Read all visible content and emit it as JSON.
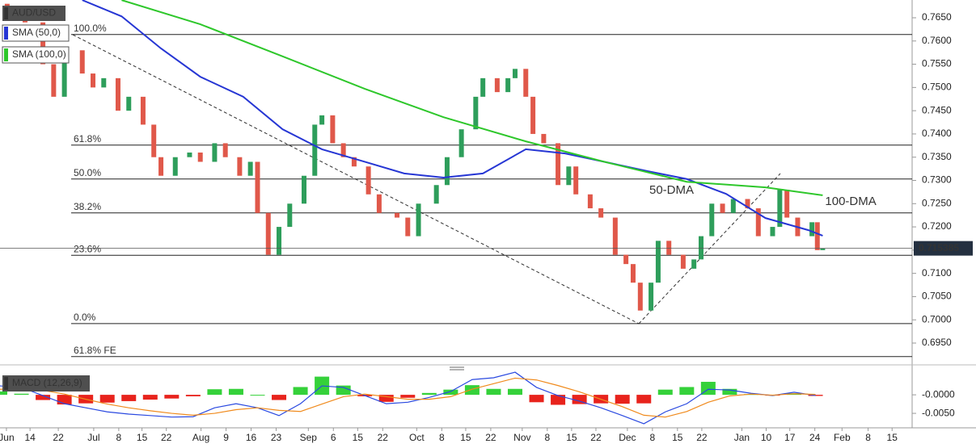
{
  "chart_data": [
    {
      "type": "candlestick",
      "name": "AUD/USD",
      "up_color": "#2e9e5b",
      "down_color": "#e0584a",
      "x": [
        2,
        7,
        12,
        15,
        18,
        23,
        26,
        29,
        33,
        36,
        40,
        43,
        45,
        49,
        53,
        56,
        60,
        63,
        67,
        70,
        72,
        75,
        78,
        81,
        85,
        88,
        90,
        93,
        96,
        99,
        103,
        106,
        111,
        114,
        117,
        122,
        125,
        129,
        133,
        135,
        139,
        142,
        144,
        147,
        149,
        152,
        156,
        159,
        161,
        165,
        168,
        172,
        175,
        177,
        179,
        182,
        184,
        187,
        191,
        194,
        196,
        199,
        202,
        205,
        209,
        212,
        216,
        218,
        220,
        223,
        227,
        228.5,
        230
      ],
      "open": [
        0.768,
        0.766,
        0.764,
        0.755,
        0.748,
        0.758,
        0.753,
        0.75,
        0.752,
        0.745,
        0.748,
        0.742,
        0.735,
        0.731,
        0.735,
        0.736,
        0.734,
        0.738,
        0.735,
        0.731,
        0.734,
        0.723,
        0.714,
        0.72,
        0.725,
        0.731,
        0.742,
        0.744,
        0.738,
        0.735,
        0.733,
        0.727,
        0.723,
        0.722,
        0.718,
        0.725,
        0.729,
        0.735,
        0.741,
        0.748,
        0.752,
        0.749,
        0.752,
        0.754,
        0.748,
        0.74,
        0.738,
        0.729,
        0.733,
        0.727,
        0.724,
        0.722,
        0.714,
        0.712,
        0.708,
        0.702,
        0.708,
        0.717,
        0.714,
        0.711,
        0.713,
        0.718,
        0.725,
        0.723,
        0.726,
        0.724,
        0.718,
        0.72,
        0.728,
        0.722,
        0.718,
        0.721,
        0.715
      ],
      "close": [
        0.766,
        0.764,
        0.755,
        0.748,
        0.758,
        0.753,
        0.75,
        0.752,
        0.745,
        0.748,
        0.742,
        0.735,
        0.731,
        0.735,
        0.736,
        0.734,
        0.738,
        0.735,
        0.731,
        0.734,
        0.723,
        0.714,
        0.72,
        0.725,
        0.731,
        0.742,
        0.744,
        0.738,
        0.735,
        0.733,
        0.727,
        0.723,
        0.722,
        0.718,
        0.725,
        0.729,
        0.735,
        0.741,
        0.748,
        0.752,
        0.749,
        0.752,
        0.754,
        0.748,
        0.74,
        0.738,
        0.729,
        0.733,
        0.727,
        0.724,
        0.722,
        0.714,
        0.712,
        0.708,
        0.702,
        0.708,
        0.717,
        0.714,
        0.711,
        0.713,
        0.718,
        0.725,
        0.723,
        0.726,
        0.724,
        0.718,
        0.72,
        0.728,
        0.722,
        0.718,
        0.721,
        0.715,
        0.7154
      ],
      "series": [
        {
          "name": "SMA (50,0)",
          "label": "50-DMA",
          "color": "#2636d4",
          "x": [
            23,
            34,
            45,
            56,
            68,
            79,
            90,
            102,
            113,
            124,
            135,
            147,
            158,
            169,
            181,
            192,
            203,
            214,
            226,
            230
          ],
          "values": [
            0.7688,
            0.7653,
            0.7584,
            0.7523,
            0.748,
            0.741,
            0.7367,
            0.734,
            0.7315,
            0.7306,
            0.7315,
            0.7367,
            0.7358,
            0.734,
            0.732,
            0.7303,
            0.7271,
            0.7219,
            0.7193,
            0.7181
          ]
        },
        {
          "name": "SMA (100,0)",
          "label": "100-DMA",
          "color": "#2ec72b",
          "x": [
            34,
            56,
            79,
            102,
            124,
            147,
            169,
            192,
            214,
            230
          ],
          "values": [
            0.7688,
            0.7636,
            0.7567,
            0.7497,
            0.7436,
            0.7384,
            0.734,
            0.7297,
            0.7285,
            0.7268
          ]
        }
      ],
      "fib_levels": [
        {
          "value": 0.7614,
          "label": "100.0%"
        },
        {
          "value": 0.7376,
          "label": "61.8%"
        },
        {
          "value": 0.7303,
          "label": "50.0%"
        },
        {
          "value": 0.723,
          "label": "38.2%"
        },
        {
          "value": 0.7139,
          "label": "23.6%"
        },
        {
          "value": 0.6992,
          "label": "0.0%"
        },
        {
          "value": 0.6921,
          "label": "61.8% FE"
        }
      ],
      "last_price": 0.715385,
      "xlim": [
        0,
        255
      ],
      "xticks": [
        {
          "value": 1.8,
          "label": "Jun"
        },
        {
          "value": 8.4,
          "label": "14"
        },
        {
          "value": 16.3,
          "label": "22"
        },
        {
          "value": 26.2,
          "label": "Jul"
        },
        {
          "value": 33.2,
          "label": "8"
        },
        {
          "value": 39.7,
          "label": "15"
        },
        {
          "value": 46.5,
          "label": "22"
        },
        {
          "value": 56.2,
          "label": "Aug"
        },
        {
          "value": 63.2,
          "label": "9"
        },
        {
          "value": 70.2,
          "label": "16"
        },
        {
          "value": 77.2,
          "label": "23"
        },
        {
          "value": 86.2,
          "label": "Sep"
        },
        {
          "value": 93.2,
          "label": "6"
        },
        {
          "value": 100,
          "label": "15"
        },
        {
          "value": 107,
          "label": "22"
        },
        {
          "value": 116.5,
          "label": "Oct"
        },
        {
          "value": 123.5,
          "label": "8"
        },
        {
          "value": 130.2,
          "label": "15"
        },
        {
          "value": 137.2,
          "label": "22"
        },
        {
          "value": 146,
          "label": "Nov"
        },
        {
          "value": 153,
          "label": "8"
        },
        {
          "value": 159.8,
          "label": "15"
        },
        {
          "value": 166.6,
          "label": "22"
        },
        {
          "value": 175.4,
          "label": "Dec"
        },
        {
          "value": 182.4,
          "label": "8"
        },
        {
          "value": 189.4,
          "label": "15"
        },
        {
          "value": 196.2,
          "label": "22"
        },
        {
          "value": 207.4,
          "label": "Jan"
        },
        {
          "value": 214.2,
          "label": "10"
        },
        {
          "value": 220.8,
          "label": "17"
        },
        {
          "value": 227.8,
          "label": "24"
        },
        {
          "value": 235.4,
          "label": "Feb"
        },
        {
          "value": 242.7,
          "label": "8"
        },
        {
          "value": 249.4,
          "label": "15"
        }
      ],
      "ylim": [
        0.69066,
        0.76882
      ],
      "yticks": [
        {
          "value": 0.765,
          "label": "0.7650"
        },
        {
          "value": 0.76,
          "label": "0.7600"
        },
        {
          "value": 0.755,
          "label": "0.7550"
        },
        {
          "value": 0.75,
          "label": "0.7500"
        },
        {
          "value": 0.745,
          "label": "0.7450"
        },
        {
          "value": 0.74,
          "label": "0.7400"
        },
        {
          "value": 0.735,
          "label": "0.7350"
        },
        {
          "value": 0.73,
          "label": "0.7300"
        },
        {
          "value": 0.725,
          "label": "0.7250"
        },
        {
          "value": 0.72,
          "label": "0.7200"
        },
        {
          "value": 0.715,
          "label": "0.7150"
        },
        {
          "value": 0.71,
          "label": "0.7100"
        },
        {
          "value": 0.705,
          "label": "0.7050"
        },
        {
          "value": 0.7,
          "label": "0.7000"
        },
        {
          "value": 0.695,
          "label": "0.6950"
        }
      ]
    },
    {
      "type": "macd",
      "title": "MACD (12,26,9)",
      "x": [
        0,
        6,
        12,
        18,
        24,
        30,
        36,
        42,
        48,
        54,
        60,
        66,
        72,
        78,
        84,
        90,
        96,
        102,
        108,
        114,
        120,
        126,
        132,
        138,
        144,
        150,
        156,
        162,
        168,
        174,
        180,
        186,
        192,
        198,
        204,
        210,
        216,
        222,
        228
      ],
      "histogram": [
        0.0009,
        0.0003,
        -0.0014,
        -0.0026,
        -0.0023,
        -0.0021,
        -0.0017,
        -0.0013,
        -0.001,
        -0.0004,
        0.0015,
        0.0016,
        0,
        -0.0014,
        0.0021,
        0.0049,
        0.0025,
        -0.0004,
        -0.0019,
        -0.0008,
        0.0005,
        0.0014,
        0.0026,
        0.0016,
        0.0016,
        -0.002,
        -0.0027,
        -0.0025,
        -0.0023,
        -0.0024,
        -0.0023,
        0.0014,
        0.0021,
        0.0035,
        0.0016,
        0.0002,
        -0.0001,
        0.0004,
        -0.0003
      ],
      "up_color": "#35d13a",
      "down_color": "#e8231c",
      "series": [
        {
          "color": "#2a49e0",
          "values": [
            0.0024,
            0.002,
            -0.0002,
            -0.0024,
            -0.0035,
            -0.0046,
            -0.0052,
            -0.0056,
            -0.006,
            -0.0059,
            -0.0035,
            -0.0024,
            -0.0035,
            -0.0056,
            -0.0024,
            0.0024,
            0.002,
            -0.0002,
            -0.0024,
            -0.002,
            -0.0007,
            0.0009,
            0.0041,
            0.0046,
            0.0061,
            0.002,
            -0.0002,
            -0.0017,
            -0.0035,
            -0.0056,
            -0.0078,
            -0.0046,
            -0.0024,
            0.0015,
            0.0013,
            0.0004,
            -0.0002,
            0.0007,
            -0.0002
          ]
        },
        {
          "color": "#f08a1c",
          "values": [
            0.0015,
            0.0017,
            0.0012,
            0.0002,
            -0.0012,
            -0.0025,
            -0.0035,
            -0.0043,
            -0.005,
            -0.0055,
            -0.005,
            -0.004,
            -0.0035,
            -0.0042,
            -0.0045,
            -0.0025,
            -0.0005,
            0.0002,
            -0.0005,
            -0.0012,
            -0.0012,
            -0.0005,
            0.0015,
            0.003,
            0.0045,
            0.004,
            0.0025,
            0.0008,
            -0.0012,
            -0.0032,
            -0.0055,
            -0.006,
            -0.0045,
            -0.002,
            -0.0003,
            0.0002,
            -0.0001,
            0.0003,
            0.0001
          ]
        }
      ],
      "ylim": [
        -0.0089,
        0.0059
      ],
      "yticks": [
        {
          "value": 0,
          "label": "-0.0000"
        },
        {
          "value": -0.005,
          "label": "-0.0050"
        }
      ]
    }
  ]
}
